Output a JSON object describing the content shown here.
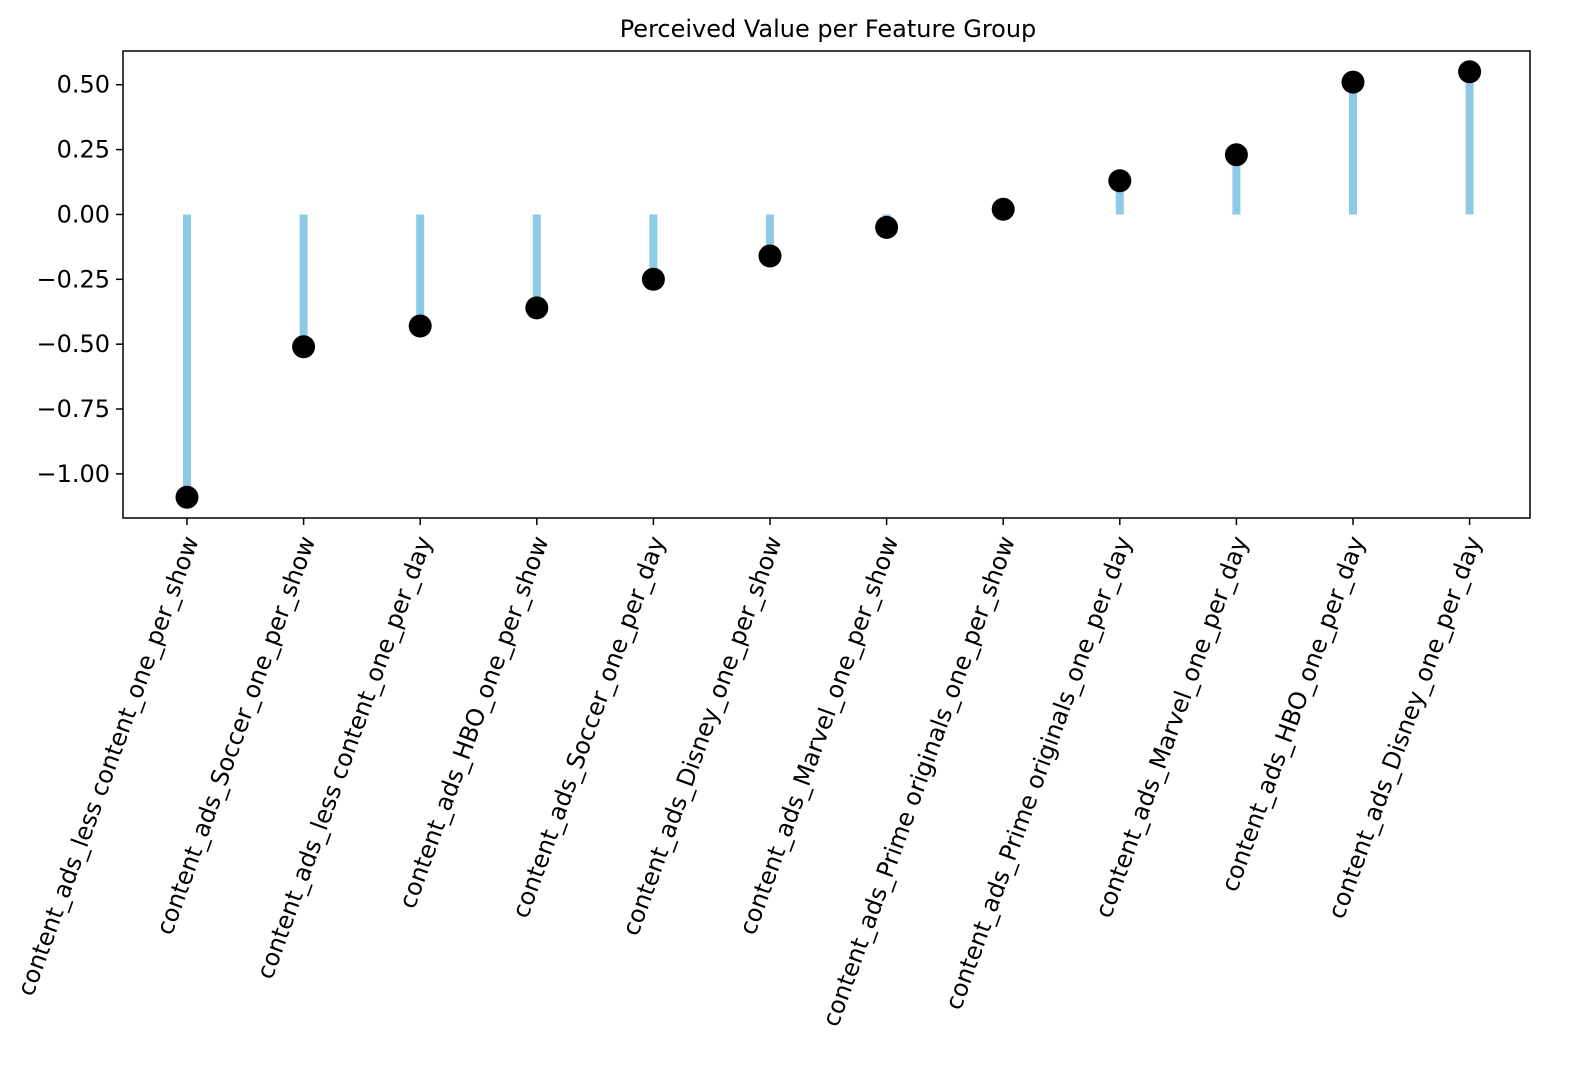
{
  "chart_data": {
    "type": "lollipop",
    "title": "Perceived Value per Feature Group",
    "xlabel": "",
    "ylabel": "",
    "categories": [
      "content_ads_less content_one_per_show",
      "content_ads_Soccer_one_per_show",
      "content_ads_less content_one_per_day",
      "content_ads_HBO_one_per_show",
      "content_ads_Soccer_one_per_day",
      "content_ads_Disney_one_per_show",
      "content_ads_Marvel_one_per_show",
      "content_ads_Prime originals_one_per_show",
      "content_ads_Prime originals_one_per_day",
      "content_ads_Marvel_one_per_day",
      "content_ads_HBO_one_per_day",
      "content_ads_Disney_one_per_day"
    ],
    "values": [
      -1.09,
      -0.51,
      -0.43,
      -0.36,
      -0.25,
      -0.16,
      -0.05,
      0.02,
      0.13,
      0.23,
      0.51,
      0.55
    ],
    "ylim": [
      -1.17,
      0.63
    ],
    "yticks": [
      0.5,
      0.25,
      0.0,
      -0.25,
      -0.5,
      -0.75,
      -1.0
    ],
    "ytick_labels": [
      "0.50",
      "0.25",
      "0.00",
      "−0.25",
      "−0.50",
      "−0.75",
      "−1.00"
    ],
    "grid": false,
    "colors": {
      "stem": "#8ecae6",
      "marker": "#000000",
      "axes": "#000000"
    }
  }
}
